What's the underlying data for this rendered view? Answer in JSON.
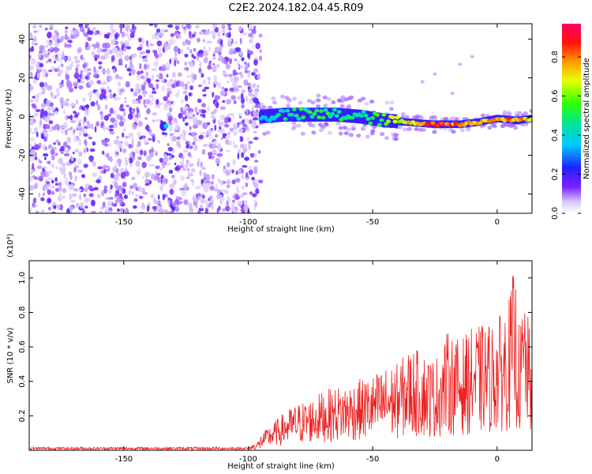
{
  "title": "C2E2.2024.182.04.45.R09",
  "colors": {
    "snr_line": "#ee2020",
    "axis": "#000000"
  },
  "chart_data": [
    {
      "type": "heatmap",
      "xlabel": "Height of straight line (km)",
      "ylabel": "Frequency (Hz)",
      "xlim": [
        -188,
        14
      ],
      "ylim": [
        -50,
        48
      ],
      "x_ticks": [
        -150,
        -100,
        -50,
        0
      ],
      "x_tick_labels": [
        "-150",
        "-100",
        "-50",
        "0"
      ],
      "y_ticks": [
        -40,
        -20,
        0,
        20,
        40
      ],
      "y_tick_labels": [
        "-40",
        "-20",
        "0",
        "20",
        "40"
      ],
      "colorbar": {
        "label": "Normalized spectral amplitude",
        "range": [
          0,
          0.97
        ],
        "ticks": [
          0.0,
          0.2,
          0.4,
          0.6,
          0.8
        ],
        "tick_labels": [
          "0.0",
          "0.2",
          "0.4",
          "0.6",
          "0.8"
        ],
        "colormap": "rainbow"
      },
      "noise_region": {
        "x_range": [
          -188,
          -95
        ],
        "typical_amplitude": 0.1
      },
      "signal_track": [
        {
          "x": -95,
          "freq": 0,
          "amp": 0.35
        },
        {
          "x": -85,
          "freq": 1,
          "amp": 0.5
        },
        {
          "x": -75,
          "freq": 1,
          "amp": 0.55
        },
        {
          "x": -65,
          "freq": 1,
          "amp": 0.55
        },
        {
          "x": -55,
          "freq": 0,
          "amp": 0.5
        },
        {
          "x": -45,
          "freq": -2,
          "amp": 0.65
        },
        {
          "x": -35,
          "freq": -3,
          "amp": 0.8
        },
        {
          "x": -25,
          "freq": -4,
          "amp": 0.95
        },
        {
          "x": -15,
          "freq": -4,
          "amp": 0.9
        },
        {
          "x": -8,
          "freq": -3,
          "amp": 0.8
        },
        {
          "x": 0,
          "freq": -1,
          "amp": 0.9
        },
        {
          "x": 8,
          "freq": -2,
          "amp": 0.85
        },
        {
          "x": 14,
          "freq": -1,
          "amp": 0.8
        }
      ],
      "bright_spot": {
        "x": -134,
        "freq": -5,
        "amp": 0.25
      }
    },
    {
      "type": "line",
      "xlabel": "Height of straight line (km)",
      "ylabel": "SNR (10 * v/v)",
      "scale_note": "(x10⁴)",
      "xlim": [
        -188,
        14
      ],
      "ylim": [
        0,
        1.1
      ],
      "x_ticks": [
        -150,
        -100,
        -50,
        0
      ],
      "x_tick_labels": [
        "-150",
        "-100",
        "-50",
        "0"
      ],
      "y_ticks": [
        0.2,
        0.4,
        0.6,
        0.8,
        1.0
      ],
      "y_tick_labels": [
        "0.2",
        "0.4",
        "0.6",
        "0.8",
        "1.0"
      ],
      "series": [
        {
          "x": [
            -188,
            -170,
            -150,
            -130,
            -110,
            -100,
            -95,
            -90,
            -85,
            -80,
            -75,
            -70,
            -65,
            -60,
            -55,
            -50,
            -45,
            -40,
            -35,
            -30,
            -25,
            -20,
            -15,
            -10,
            -5,
            0,
            5,
            7,
            9,
            11,
            14
          ],
          "y": [
            0.02,
            0.02,
            0.02,
            0.02,
            0.02,
            0.02,
            0.08,
            0.14,
            0.2,
            0.24,
            0.26,
            0.3,
            0.32,
            0.34,
            0.36,
            0.38,
            0.42,
            0.44,
            0.52,
            0.5,
            0.46,
            0.6,
            0.56,
            0.62,
            0.64,
            0.66,
            0.78,
            0.95,
            0.6,
            0.82,
            0.5
          ]
        }
      ]
    }
  ]
}
